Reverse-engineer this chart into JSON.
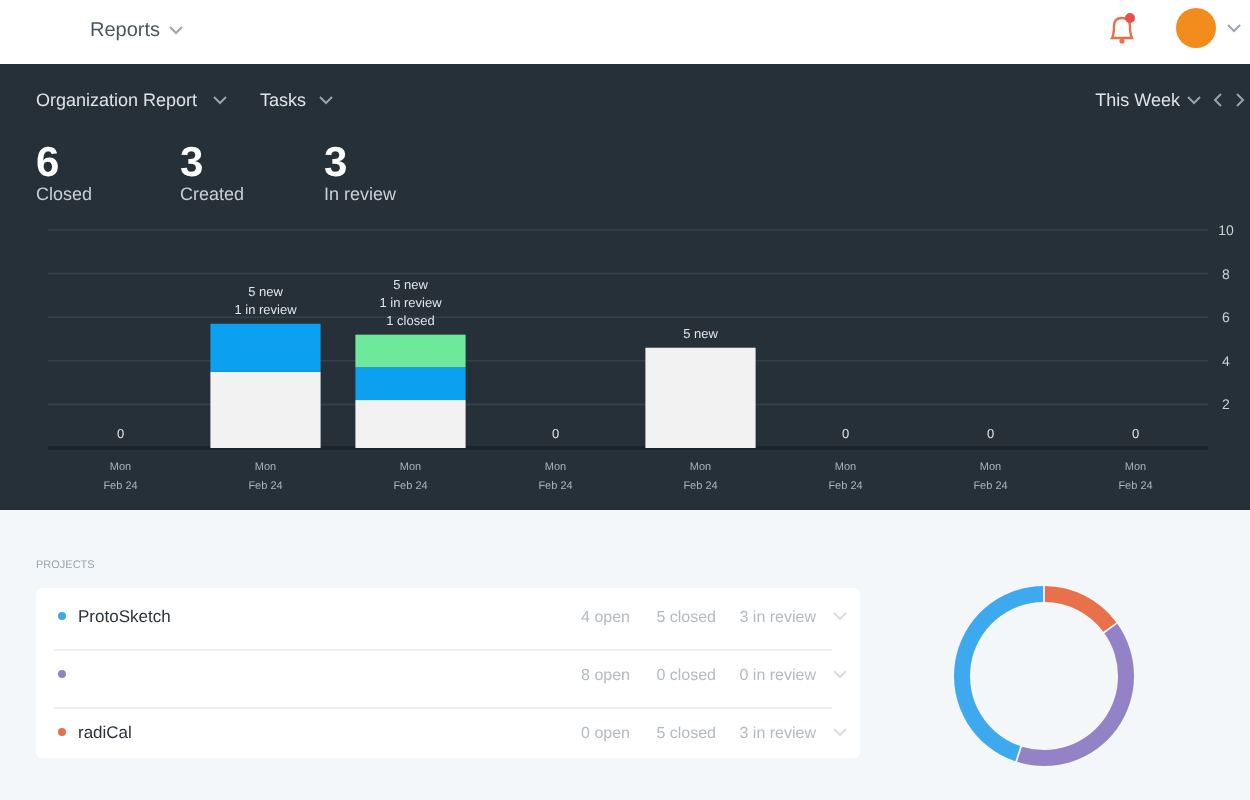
{
  "chart_data": [
    {
      "type": "other",
      "title": "Reports",
      "annotations": [
        "Organization Report",
        "Tasks",
        "This Week",
        "6",
        "Closed",
        "3",
        "Created",
        "3",
        "In review"
      ]
    },
    {
      "type": "bar",
      "stacked": true,
      "categories": [
        "Mon\nFeb 24",
        "Mon\nFeb 24",
        "Mon\nFeb 24",
        "Mon\nFeb 24",
        "Mon\nFeb 24",
        "Mon\nFeb 24",
        "Mon\nFeb 24",
        "Mon\nFeb 24"
      ],
      "series": [
        {
          "color": "#f2f2f2",
          "values": [
            0,
            3.5,
            2.2,
            0,
            4.6,
            0,
            0,
            0
          ]
        },
        {
          "color": "#0ba0f0",
          "values": [
            0,
            2.2,
            1.5,
            0,
            0,
            0,
            0,
            0
          ]
        },
        {
          "color": "#6ee89a",
          "values": [
            0,
            0,
            1.5,
            0,
            0,
            0,
            0,
            0
          ]
        }
      ],
      "totals": [
        "0",
        "5 new\n1 in review",
        "5 new\n1 in review\n1 closed",
        "0",
        "5 new",
        "0",
        "0",
        "0"
      ],
      "ylim": [
        0,
        10
      ],
      "yticks": [
        {
          "value": 0,
          "label": null
        },
        2,
        4,
        6,
        8,
        10
      ],
      "grid": "y"
    },
    {
      "type": "other",
      "title": "PROJECTS",
      "annotations": [
        "ProtoSketch",
        "4 open",
        "5 closed",
        "3 in review",
        "8 open",
        "0 closed",
        "0 in review",
        "radiCal",
        "0 open",
        "5 closed",
        "3 in review"
      ]
    },
    {
      "type": "donut",
      "categories": [
        null,
        null,
        null
      ],
      "values": [
        15,
        40,
        45
      ],
      "colors": [
        "#e8704a",
        "#9482c6",
        "#3ea9ef"
      ]
    }
  ]
}
